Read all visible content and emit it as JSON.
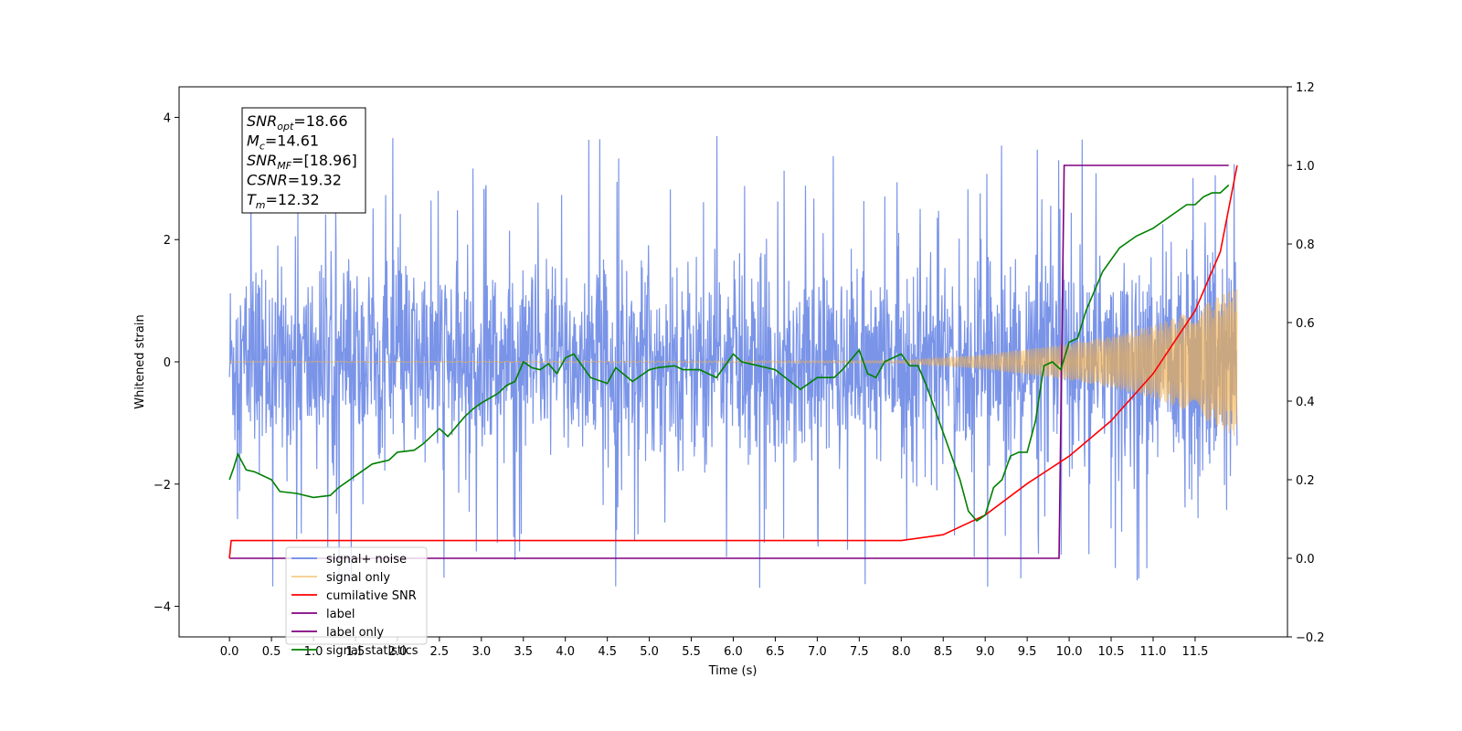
{
  "chart_data": {
    "type": "line",
    "title": "",
    "xlabel": "Time (s)",
    "ylabel": "Whitened strain",
    "xlim": [
      -0.6,
      12.6
    ],
    "ylim": [
      -4.5,
      4.5
    ],
    "y2lim": [
      -0.2,
      1.2
    ],
    "grid": false,
    "legend_position": "lower-left",
    "x_ticks": [
      "0.0",
      "0.5",
      "1.0",
      "1.5",
      "2.0",
      "2.5",
      "3.0",
      "3.5",
      "4.0",
      "4.5",
      "5.0",
      "5.5",
      "6.0",
      "6.5",
      "7.0",
      "7.5",
      "8.0",
      "8.5",
      "9.0",
      "9.5",
      "10.0",
      "10.5",
      "11.0",
      "11.5"
    ],
    "y_ticks": [
      "4",
      "2",
      "0",
      "−2",
      "−4"
    ],
    "y2_ticks": [
      "1.2",
      "1.0",
      "0.8",
      "0.6",
      "0.4",
      "0.2",
      "0.0",
      "−0.2"
    ],
    "annotations": [
      {
        "base": "SNR",
        "sub": "opt",
        "rest": "=18.66"
      },
      {
        "base": "M",
        "sub": "c",
        "rest": "=14.61"
      },
      {
        "base": "SNR",
        "sub": "MF",
        "rest": "=[18.96]"
      },
      {
        "base": "CSNR",
        "sub": "",
        "rest": "=19.32"
      },
      {
        "base": "T",
        "sub": "m",
        "rest": "=12.32"
      }
    ],
    "series": [
      {
        "name": "signal+ noise",
        "color": "#6b88e6",
        "axis": "left",
        "duration": 12.0,
        "noise_envelope": 1.3,
        "noise_peak_max": 4.1,
        "noise_peak_min": -4.1
      },
      {
        "name": "signal only",
        "color": "#f5b04a",
        "axis": "left",
        "envelope_x": [
          0.0,
          8.0,
          9.0,
          10.0,
          10.5,
          11.0,
          11.5,
          12.0
        ],
        "envelope_y": [
          0.0,
          0.02,
          0.12,
          0.3,
          0.42,
          0.6,
          0.85,
          1.25
        ]
      },
      {
        "name": "cumilative SNR",
        "color": "#ff0000",
        "axis": "right",
        "x": [
          0.0,
          0.02,
          8.0,
          8.5,
          9.0,
          9.5,
          10.0,
          10.5,
          11.0,
          11.5,
          11.8,
          12.0
        ],
        "y": [
          0.0,
          0.045,
          0.045,
          0.06,
          0.11,
          0.19,
          0.26,
          0.35,
          0.47,
          0.63,
          0.78,
          1.0
        ]
      },
      {
        "name": "label",
        "color": "#800080",
        "axis": "right",
        "x": [
          0.0,
          9.88,
          9.94,
          11.9
        ],
        "y": [
          0.0,
          0.0,
          1.0,
          1.0
        ]
      },
      {
        "name": "label only",
        "color": "#800080",
        "axis": "right",
        "legend_only": true
      },
      {
        "name": "signal statistics",
        "color": "#008000",
        "axis": "right",
        "x": [
          0.0,
          0.05,
          0.1,
          0.2,
          0.3,
          0.5,
          0.6,
          0.8,
          1.0,
          1.2,
          1.3,
          1.5,
          1.7,
          1.9,
          2.0,
          2.2,
          2.3,
          2.5,
          2.6,
          2.8,
          2.9,
          3.0,
          3.2,
          3.3,
          3.4,
          3.5,
          3.6,
          3.7,
          3.8,
          3.9,
          4.0,
          4.1,
          4.3,
          4.5,
          4.6,
          4.8,
          5.0,
          5.1,
          5.3,
          5.4,
          5.6,
          5.8,
          6.0,
          6.1,
          6.3,
          6.5,
          6.8,
          7.0,
          7.2,
          7.3,
          7.5,
          7.6,
          7.7,
          7.8,
          8.0,
          8.1,
          8.2,
          8.3,
          8.4,
          8.5,
          8.7,
          8.8,
          8.9,
          9.0,
          9.1,
          9.2,
          9.3,
          9.4,
          9.5,
          9.6,
          9.7,
          9.8,
          9.9,
          10.0,
          10.1,
          10.2,
          10.4,
          10.6,
          10.8,
          11.0,
          11.2,
          11.4,
          11.5,
          11.6,
          11.7,
          11.8,
          11.9
        ],
        "y": [
          0.2,
          0.23,
          0.265,
          0.225,
          0.22,
          0.2,
          0.17,
          0.165,
          0.155,
          0.16,
          0.18,
          0.21,
          0.24,
          0.25,
          0.27,
          0.275,
          0.29,
          0.33,
          0.31,
          0.36,
          0.38,
          0.395,
          0.42,
          0.44,
          0.45,
          0.5,
          0.485,
          0.48,
          0.495,
          0.47,
          0.51,
          0.52,
          0.46,
          0.445,
          0.485,
          0.45,
          0.48,
          0.485,
          0.49,
          0.48,
          0.48,
          0.46,
          0.52,
          0.5,
          0.49,
          0.48,
          0.43,
          0.46,
          0.46,
          0.48,
          0.53,
          0.47,
          0.46,
          0.5,
          0.52,
          0.49,
          0.49,
          0.44,
          0.38,
          0.32,
          0.2,
          0.12,
          0.095,
          0.11,
          0.18,
          0.2,
          0.26,
          0.27,
          0.27,
          0.35,
          0.49,
          0.5,
          0.48,
          0.55,
          0.56,
          0.63,
          0.73,
          0.79,
          0.82,
          0.84,
          0.87,
          0.9,
          0.9,
          0.92,
          0.93,
          0.93,
          0.95
        ]
      }
    ]
  }
}
